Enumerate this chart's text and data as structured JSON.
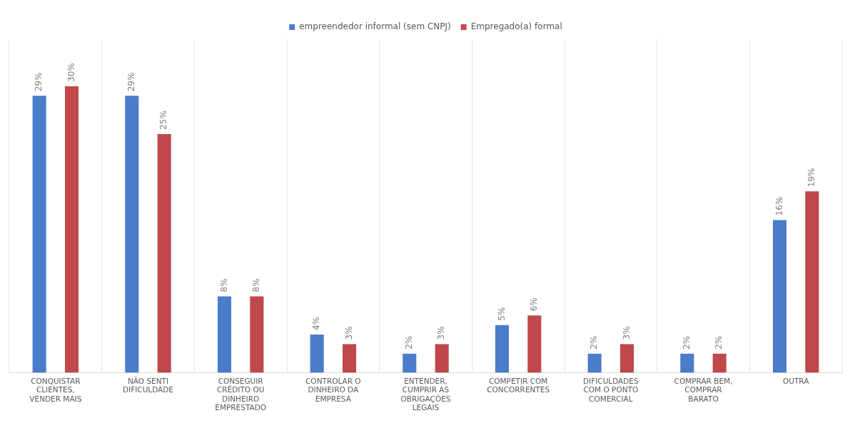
{
  "chart_data": {
    "type": "bar",
    "categories": [
      "CONQUISTAR\nCLIENTES,\nVENDER MAIS",
      "NÃO SENTI\nDIFICULDADE",
      "CONSEGUIR\nCRÉDITO OU\nDINHEIRO\nEMPRESTADO",
      "CONTROLAR O\nDINHEIRO DA\nEMPRESA",
      "ENTENDER,\nCUMPRIR AS\nOBRIGAÇÕES\nLEGAIS",
      "COMPETIR COM\nCONCORRENTES",
      "DIFICULDADES\nCOM O PONTO\nCOMERCIAL",
      "COMPRAR BEM,\nCOMPRAR\nBARATO",
      "OUTRA"
    ],
    "series": [
      {
        "name": "empreendedor informal (sem CNPJ)",
        "color": "#4a7cc9",
        "values": [
          29,
          29,
          8,
          4,
          2,
          5,
          2,
          2,
          16
        ],
        "value_labels": [
          "29%",
          "29%",
          "8%",
          "4%",
          "2%",
          "5%",
          "2%",
          "2%",
          "16%"
        ]
      },
      {
        "name": "Empregado(a) formal",
        "color": "#c0474a",
        "values": [
          30,
          25,
          8,
          3,
          3,
          6,
          3,
          2,
          19
        ],
        "value_labels": [
          "30%",
          "25%",
          "8%",
          "3%",
          "3%",
          "6%",
          "3%",
          "2%",
          "19%"
        ]
      }
    ],
    "legend": "top",
    "grid": "x",
    "tick_labels": "x"
  }
}
